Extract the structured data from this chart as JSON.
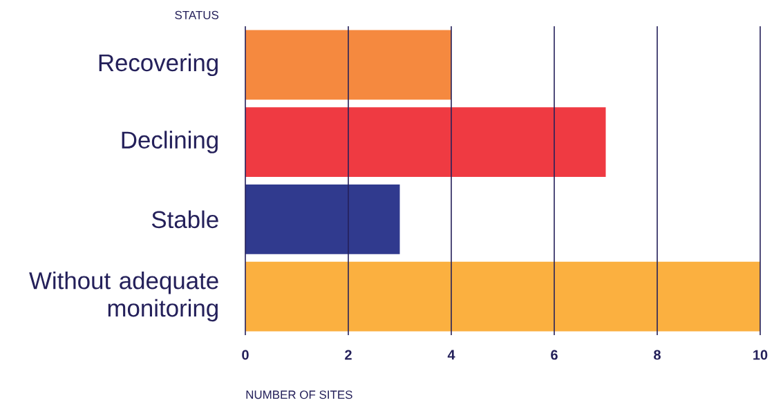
{
  "chart_data": {
    "type": "bar",
    "orientation": "horizontal",
    "ylabel": "STATUS",
    "xlabel": "NUMBER OF SITES",
    "categories": [
      "Recovering",
      "Declining",
      "Stable",
      "Without adequate monitoring"
    ],
    "values": [
      4,
      7,
      3,
      10
    ],
    "colors": [
      "#f5893f",
      "#ef3a42",
      "#303a8e",
      "#fbb040"
    ],
    "xlim": [
      0,
      10
    ],
    "xticks": [
      0,
      2,
      4,
      6,
      8,
      10
    ],
    "grid": "x"
  }
}
